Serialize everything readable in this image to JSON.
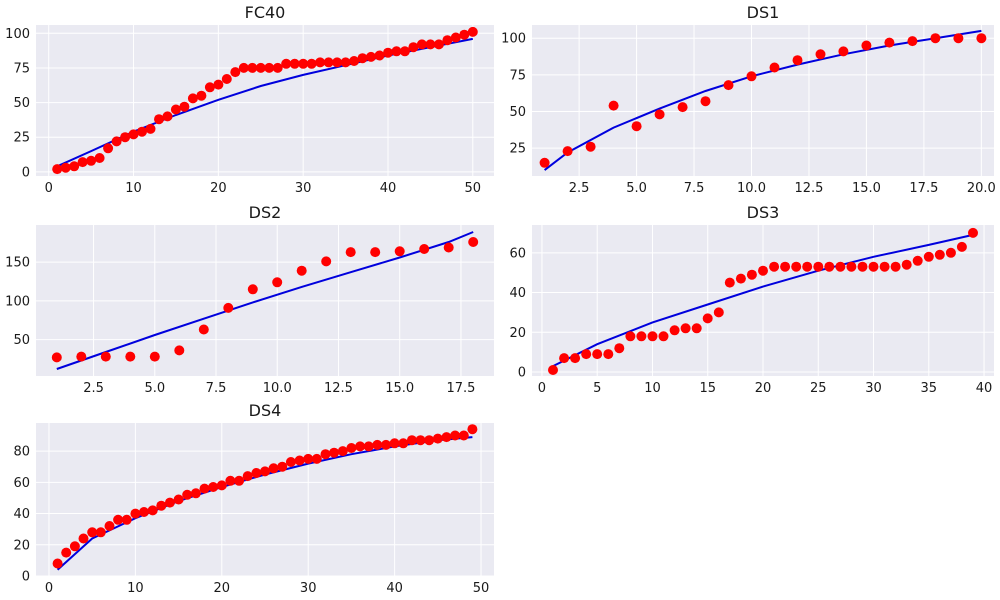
{
  "colors": {
    "points": "#ff0000",
    "fit_line": "#0000dd",
    "plot_background": "#eaeaf2",
    "grid": "#ffffff"
  },
  "chart_data": [
    {
      "type": "scatter",
      "title": "FC40",
      "xlabel": "",
      "ylabel": "",
      "grid": true,
      "xlim": [
        -1.5,
        52.5
      ],
      "ylim": [
        -3,
        106
      ],
      "xticks": [
        0,
        10,
        20,
        30,
        40,
        50
      ],
      "yticks": [
        0,
        25,
        50,
        75,
        100
      ],
      "xticklabels": [
        "0",
        "10",
        "20",
        "30",
        "40",
        "50"
      ],
      "yticklabels": [
        "0",
        "25",
        "50",
        "75",
        "100"
      ],
      "series": [
        {
          "kind": "scatter",
          "x": [
            1,
            2,
            3,
            4,
            5,
            6,
            7,
            8,
            9,
            10,
            11,
            12,
            13,
            14,
            15,
            16,
            17,
            18,
            19,
            20,
            21,
            22,
            23,
            24,
            25,
            26,
            27,
            28,
            29,
            30,
            31,
            32,
            33,
            34,
            35,
            36,
            37,
            38,
            39,
            40,
            41,
            42,
            43,
            44,
            45,
            46,
            47,
            48,
            49,
            50
          ],
          "y": [
            2,
            3,
            4,
            7,
            8,
            10,
            17,
            22,
            25,
            27,
            29,
            31,
            38,
            40,
            45,
            47,
            53,
            55,
            61,
            63,
            67,
            72,
            75,
            75,
            75,
            75,
            75,
            78,
            78,
            78,
            78,
            79,
            79,
            79,
            79,
            80,
            82,
            83,
            84,
            86,
            87,
            87,
            90,
            92,
            92,
            92,
            95,
            97,
            99,
            101
          ]
        },
        {
          "kind": "line",
          "x": [
            1,
            5,
            10,
            15,
            20,
            25,
            30,
            35,
            40,
            45,
            50
          ],
          "y": [
            4,
            15,
            29,
            41,
            52,
            62,
            70,
            77,
            84,
            90,
            96
          ]
        }
      ]
    },
    {
      "type": "scatter",
      "title": "DS1",
      "xlabel": "",
      "ylabel": "",
      "grid": true,
      "xlim": [
        0.45,
        20.55
      ],
      "ylim": [
        6,
        109
      ],
      "xticks": [
        2.5,
        5.0,
        7.5,
        10.0,
        12.5,
        15.0,
        17.5,
        20.0
      ],
      "yticks": [
        25,
        50,
        75,
        100
      ],
      "xticklabels": [
        "2.5",
        "5.0",
        "7.5",
        "10.0",
        "12.5",
        "15.0",
        "17.5",
        "20.0"
      ],
      "yticklabels": [
        "25",
        "50",
        "75",
        "100"
      ],
      "series": [
        {
          "kind": "scatter",
          "x": [
            1,
            2,
            3,
            4,
            5,
            6,
            7,
            8,
            9,
            10,
            11,
            12,
            13,
            14,
            15,
            16,
            17,
            18,
            19,
            20
          ],
          "y": [
            15,
            23,
            26,
            54,
            40,
            48,
            53,
            57,
            68,
            74,
            80,
            85,
            89,
            91,
            95,
            97,
            98,
            100,
            100,
            100
          ]
        },
        {
          "kind": "line",
          "x": [
            1,
            2,
            4,
            6,
            8,
            10,
            12,
            14,
            16,
            18,
            20
          ],
          "y": [
            10,
            22,
            39,
            52,
            64,
            74,
            82,
            89,
            95,
            100,
            105
          ]
        }
      ]
    },
    {
      "type": "scatter",
      "title": "DS2",
      "xlabel": "",
      "ylabel": "",
      "grid": true,
      "xlim": [
        0.15,
        18.85
      ],
      "ylim": [
        3,
        198
      ],
      "xticks": [
        2.5,
        5.0,
        7.5,
        10.0,
        12.5,
        15.0,
        17.5
      ],
      "yticks": [
        50,
        100,
        150
      ],
      "xticklabels": [
        "2.5",
        "5.0",
        "7.5",
        "10.0",
        "12.5",
        "15.0",
        "17.5"
      ],
      "yticklabels": [
        "50",
        "100",
        "150"
      ],
      "series": [
        {
          "kind": "scatter",
          "x": [
            1,
            2,
            3,
            4,
            5,
            6,
            7,
            8,
            9,
            10,
            11,
            12,
            13,
            14,
            15,
            16,
            17,
            18
          ],
          "y": [
            27,
            28,
            28,
            28,
            28,
            36,
            63,
            91,
            115,
            124,
            139,
            151,
            163,
            163,
            164,
            167,
            169,
            176
          ]
        },
        {
          "kind": "line",
          "x": [
            1,
            3,
            5,
            7,
            9,
            11,
            13,
            15,
            17,
            18
          ],
          "y": [
            12,
            34,
            56,
            77,
            98,
            118,
            137,
            156,
            176,
            189
          ]
        }
      ]
    },
    {
      "type": "scatter",
      "title": "DS3",
      "xlabel": "",
      "ylabel": "",
      "grid": true,
      "xlim": [
        -0.9,
        40.9
      ],
      "ylim": [
        -2,
        74
      ],
      "xticks": [
        0,
        5,
        10,
        15,
        20,
        25,
        30,
        35,
        40
      ],
      "yticks": [
        0,
        20,
        40,
        60
      ],
      "xticklabels": [
        "0",
        "5",
        "10",
        "15",
        "20",
        "25",
        "30",
        "35",
        "40"
      ],
      "yticklabels": [
        "0",
        "20",
        "40",
        "60"
      ],
      "series": [
        {
          "kind": "scatter",
          "x": [
            1,
            2,
            3,
            4,
            5,
            6,
            7,
            8,
            9,
            10,
            11,
            12,
            13,
            14,
            15,
            16,
            17,
            18,
            19,
            20,
            21,
            22,
            23,
            24,
            25,
            26,
            27,
            28,
            29,
            30,
            31,
            32,
            33,
            34,
            35,
            36,
            37,
            38,
            39
          ],
          "y": [
            1,
            7,
            7,
            9,
            9,
            9,
            12,
            18,
            18,
            18,
            18,
            21,
            22,
            22,
            27,
            30,
            45,
            47,
            49,
            51,
            53,
            53,
            53,
            53,
            53,
            53,
            53,
            53,
            53,
            53,
            53,
            53,
            54,
            56,
            58,
            59,
            60,
            63,
            70
          ]
        },
        {
          "kind": "line",
          "x": [
            1,
            5,
            10,
            15,
            20,
            25,
            30,
            35,
            39
          ],
          "y": [
            3,
            14,
            25,
            34,
            43,
            51,
            58,
            64,
            69
          ]
        }
      ]
    },
    {
      "type": "scatter",
      "title": "DS4",
      "xlabel": "",
      "ylabel": "",
      "grid": true,
      "xlim": [
        -1.5,
        51.5
      ],
      "ylim": [
        0,
        98
      ],
      "xticks": [
        0,
        10,
        20,
        30,
        40,
        50
      ],
      "yticks": [
        0,
        20,
        40,
        60,
        80
      ],
      "xticklabels": [
        "0",
        "10",
        "20",
        "30",
        "40",
        "50"
      ],
      "yticklabels": [
        "0",
        "20",
        "40",
        "60",
        "80"
      ],
      "series": [
        {
          "kind": "scatter",
          "x": [
            1,
            2,
            3,
            4,
            5,
            6,
            7,
            8,
            9,
            10,
            11,
            12,
            13,
            14,
            15,
            16,
            17,
            18,
            19,
            20,
            21,
            22,
            23,
            24,
            25,
            26,
            27,
            28,
            29,
            30,
            31,
            32,
            33,
            34,
            35,
            36,
            37,
            38,
            39,
            40,
            41,
            42,
            43,
            44,
            45,
            46,
            47,
            48,
            49
          ],
          "y": [
            8,
            15,
            19,
            24,
            28,
            28,
            32,
            36,
            36,
            40,
            41,
            42,
            45,
            47,
            49,
            52,
            53,
            56,
            57,
            58,
            61,
            61,
            64,
            66,
            67,
            69,
            70,
            73,
            74,
            75,
            75,
            78,
            79,
            80,
            82,
            83,
            83,
            84,
            84,
            85,
            85,
            87,
            87,
            87,
            88,
            89,
            90,
            90,
            94
          ]
        },
        {
          "kind": "line",
          "x": [
            1,
            5,
            10,
            15,
            20,
            25,
            30,
            35,
            40,
            45,
            49
          ],
          "y": [
            4,
            24,
            37,
            48,
            57,
            65,
            72,
            78,
            83,
            87,
            89
          ]
        }
      ]
    }
  ]
}
